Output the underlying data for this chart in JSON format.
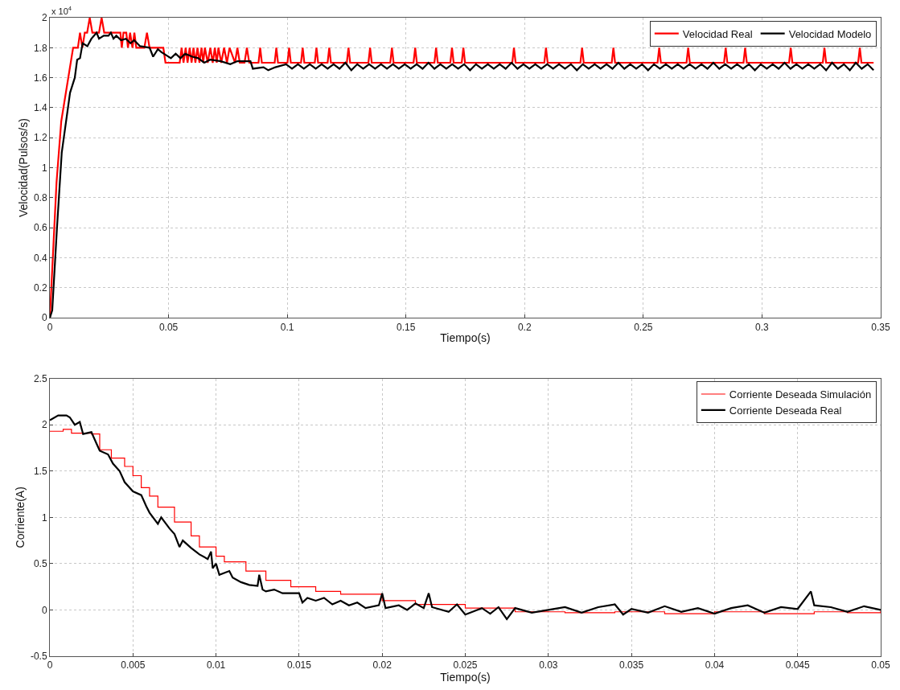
{
  "chart_data": [
    {
      "type": "line",
      "xlabel": "Tiempo(s)",
      "ylabel": "Velocidad(Pulsos/s)",
      "annotations": [
        "x 10$^{4}$"
      ],
      "xlim": [
        0,
        0.35
      ],
      "xticks": [
        0,
        0.05,
        0.1,
        0.15,
        0.2,
        0.25,
        0.3,
        0.35
      ],
      "ylim": [
        0,
        2
      ],
      "yticks": [
        0,
        0.2,
        0.4,
        0.6,
        0.8,
        1,
        1.2,
        1.4,
        1.6,
        1.8,
        2
      ],
      "grid": true,
      "legend": "top right",
      "marker": "none",
      "line_style": "solid",
      "series": [
        {
          "name": "Velocidad Real",
          "color": "#ff0000",
          "x": [
            0,
            0.0028,
            0.0048,
            0.0098,
            0.0118,
            0.0127,
            0.0137,
            0.0147,
            0.0157,
            0.0168,
            0.0179,
            0.0207,
            0.0218,
            0.0229,
            0.0297,
            0.0303,
            0.031,
            0.0322,
            0.0329,
            0.0338,
            0.0348,
            0.0356,
            0.0364,
            0.0398,
            0.0409,
            0.042,
            0.0478,
            0.0487,
            0.0547,
            0.0555,
            0.0563,
            0.0572,
            0.058,
            0.0589,
            0.0597,
            0.0605,
            0.0613,
            0.0622,
            0.063,
            0.0639,
            0.0646,
            0.0653,
            0.0665,
            0.0676,
            0.0686,
            0.0695,
            0.0703,
            0.071,
            0.0722,
            0.0734,
            0.0746,
            0.0757,
            0.078,
            0.079,
            0.08,
            0.082,
            0.083,
            0.084,
            0.0879,
            0.0886,
            0.0893,
            0.0947,
            0.0954,
            0.0961,
            0.1001,
            0.1008,
            0.1015,
            0.1058,
            0.1065,
            0.1072,
            0.1116,
            0.1123,
            0.113,
            0.117,
            0.1177,
            0.1184,
            0.1251,
            0.1258,
            0.1265,
            0.1342,
            0.1349,
            0.1356,
            0.1434,
            0.1441,
            0.1448,
            0.1532,
            0.1539,
            0.1546,
            0.162,
            0.1627,
            0.1634,
            0.1687,
            0.1694,
            0.1701,
            0.1735,
            0.1742,
            0.1749,
            0.1948,
            0.1955,
            0.1962,
            0.2083,
            0.209,
            0.2097,
            0.2235,
            0.2242,
            0.2249,
            0.2367,
            0.2374,
            0.2381,
            0.256,
            0.2567,
            0.2574,
            0.2682,
            0.2689,
            0.2696,
            0.284,
            0.2847,
            0.2854,
            0.2922,
            0.2929,
            0.2936,
            0.3114,
            0.3121,
            0.3128,
            0.3256,
            0.3263,
            0.327,
            0.3405,
            0.3412,
            0.3419,
            0.347
          ],
          "values": [
            0,
            0.9,
            1.31,
            1.8,
            1.8,
            1.9,
            1.8,
            1.9,
            1.9,
            2.0,
            1.9,
            1.9,
            2.0,
            1.9,
            1.9,
            1.8,
            1.9,
            1.9,
            1.8,
            1.9,
            1.8,
            1.9,
            1.8,
            1.8,
            1.9,
            1.8,
            1.8,
            1.7,
            1.7,
            1.8,
            1.7,
            1.8,
            1.7,
            1.8,
            1.7,
            1.8,
            1.7,
            1.8,
            1.7,
            1.8,
            1.7,
            1.8,
            1.7,
            1.8,
            1.7,
            1.8,
            1.7,
            1.8,
            1.7,
            1.8,
            1.7,
            1.8,
            1.7,
            1.8,
            1.7,
            1.7,
            1.8,
            1.7,
            1.7,
            1.8,
            1.7,
            1.7,
            1.8,
            1.7,
            1.7,
            1.8,
            1.7,
            1.7,
            1.8,
            1.7,
            1.7,
            1.8,
            1.7,
            1.7,
            1.8,
            1.7,
            1.7,
            1.8,
            1.7,
            1.7,
            1.8,
            1.7,
            1.7,
            1.8,
            1.7,
            1.7,
            1.8,
            1.7,
            1.7,
            1.8,
            1.7,
            1.7,
            1.8,
            1.7,
            1.7,
            1.8,
            1.7,
            1.7,
            1.8,
            1.7,
            1.7,
            1.8,
            1.7,
            1.7,
            1.8,
            1.7,
            1.7,
            1.8,
            1.7,
            1.7,
            1.8,
            1.7,
            1.7,
            1.8,
            1.7,
            1.7,
            1.8,
            1.7,
            1.7,
            1.8,
            1.7,
            1.7,
            1.8,
            1.7,
            1.7,
            1.8,
            1.7,
            1.7,
            1.8,
            1.7,
            1.7
          ]
        },
        {
          "name": "Velocidad Modelo",
          "color": "#000000",
          "x": [
            0,
            0.001,
            0.003,
            0.005,
            0.0085,
            0.0105,
            0.0115,
            0.0127,
            0.0138,
            0.0158,
            0.0175,
            0.0197,
            0.0207,
            0.0227,
            0.0247,
            0.0257,
            0.0268,
            0.028,
            0.03,
            0.032,
            0.034,
            0.0355,
            0.038,
            0.042,
            0.0435,
            0.0455,
            0.047,
            0.049,
            0.051,
            0.053,
            0.055,
            0.057,
            0.06,
            0.0625,
            0.065,
            0.0675,
            0.072,
            0.076,
            0.079,
            0.0845,
            0.0855,
            0.09,
            0.092,
            0.095,
            0.0995,
            0.102,
            0.1045,
            0.107,
            0.1095,
            0.112,
            0.1145,
            0.117,
            0.1195,
            0.122,
            0.1245,
            0.127,
            0.1295,
            0.132,
            0.1345,
            0.137,
            0.1395,
            0.142,
            0.1445,
            0.147,
            0.1495,
            0.152,
            0.1545,
            0.157,
            0.1595,
            0.162,
            0.1645,
            0.167,
            0.1695,
            0.172,
            0.1745,
            0.177,
            0.1795,
            0.182,
            0.1845,
            0.187,
            0.1895,
            0.192,
            0.1945,
            0.197,
            0.1995,
            0.202,
            0.2045,
            0.207,
            0.2095,
            0.212,
            0.2145,
            0.217,
            0.2195,
            0.222,
            0.2245,
            0.227,
            0.2295,
            0.232,
            0.2345,
            0.237,
            0.2395,
            0.242,
            0.2445,
            0.247,
            0.2495,
            0.252,
            0.2545,
            0.257,
            0.2595,
            0.262,
            0.2645,
            0.267,
            0.2695,
            0.272,
            0.2745,
            0.277,
            0.2795,
            0.282,
            0.2845,
            0.287,
            0.2895,
            0.292,
            0.2945,
            0.297,
            0.2995,
            0.302,
            0.3045,
            0.307,
            0.3095,
            0.312,
            0.3145,
            0.317,
            0.3195,
            0.322,
            0.3245,
            0.327,
            0.3295,
            0.332,
            0.3345,
            0.337,
            0.3395,
            0.342,
            0.3445,
            0.347
          ],
          "values": [
            0,
            0.05,
            0.6,
            1.1,
            1.5,
            1.6,
            1.72,
            1.73,
            1.83,
            1.81,
            1.86,
            1.9,
            1.86,
            1.88,
            1.88,
            1.9,
            1.86,
            1.88,
            1.85,
            1.86,
            1.83,
            1.85,
            1.81,
            1.8,
            1.74,
            1.79,
            1.77,
            1.75,
            1.73,
            1.76,
            1.73,
            1.76,
            1.74,
            1.73,
            1.7,
            1.72,
            1.71,
            1.69,
            1.71,
            1.71,
            1.66,
            1.67,
            1.65,
            1.67,
            1.69,
            1.66,
            1.69,
            1.66,
            1.69,
            1.66,
            1.69,
            1.66,
            1.69,
            1.66,
            1.7,
            1.65,
            1.69,
            1.66,
            1.69,
            1.66,
            1.69,
            1.66,
            1.69,
            1.66,
            1.69,
            1.66,
            1.69,
            1.66,
            1.7,
            1.66,
            1.69,
            1.66,
            1.69,
            1.66,
            1.69,
            1.65,
            1.69,
            1.66,
            1.69,
            1.66,
            1.69,
            1.66,
            1.7,
            1.66,
            1.69,
            1.66,
            1.69,
            1.66,
            1.69,
            1.66,
            1.69,
            1.66,
            1.69,
            1.65,
            1.69,
            1.66,
            1.69,
            1.66,
            1.69,
            1.66,
            1.7,
            1.66,
            1.69,
            1.66,
            1.69,
            1.65,
            1.69,
            1.66,
            1.69,
            1.66,
            1.69,
            1.66,
            1.69,
            1.66,
            1.69,
            1.66,
            1.7,
            1.66,
            1.69,
            1.66,
            1.69,
            1.66,
            1.69,
            1.65,
            1.69,
            1.66,
            1.69,
            1.66,
            1.7,
            1.66,
            1.69,
            1.66,
            1.69,
            1.66,
            1.69,
            1.65,
            1.7,
            1.66,
            1.69,
            1.65,
            1.7,
            1.66,
            1.69,
            1.65
          ]
        }
      ]
    },
    {
      "type": "line",
      "xlabel": "Tiempo(s)",
      "ylabel": "Corriente(A)",
      "xlim": [
        0,
        0.05
      ],
      "xticks": [
        0,
        0.005,
        0.01,
        0.015,
        0.02,
        0.025,
        0.03,
        0.035,
        0.04,
        0.045,
        0.05
      ],
      "ylim": [
        -0.5,
        2.5
      ],
      "yticks": [
        -0.5,
        0,
        0.5,
        1,
        1.5,
        2,
        2.5
      ],
      "grid": true,
      "legend": "top right",
      "marker": "none",
      "line_style": "solid",
      "series": [
        {
          "name": "Corriente Deseada Simulación",
          "type": "step",
          "color": "#ff0000",
          "x": [
            0,
            0.0008,
            0.0013,
            0.0025,
            0.003,
            0.0037,
            0.0045,
            0.005,
            0.0055,
            0.006,
            0.0065,
            0.0075,
            0.0085,
            0.009,
            0.01,
            0.0105,
            0.0118,
            0.013,
            0.0145,
            0.016,
            0.0175,
            0.02,
            0.022,
            0.025,
            0.028,
            0.031,
            0.034,
            0.037,
            0.04,
            0.043,
            0.046,
            0.048,
            0.05
          ],
          "values": [
            1.93,
            1.95,
            1.91,
            1.9,
            1.73,
            1.64,
            1.55,
            1.45,
            1.32,
            1.23,
            1.11,
            0.95,
            0.8,
            0.68,
            0.58,
            0.52,
            0.42,
            0.32,
            0.25,
            0.2,
            0.17,
            0.1,
            0.06,
            0.02,
            -0.02,
            -0.03,
            -0.02,
            -0.04,
            -0.02,
            -0.04,
            -0.02,
            -0.03,
            -0.01
          ]
        },
        {
          "name": "Corriente Deseada Real",
          "color": "#000000",
          "x": [
            0,
            0.0005,
            0.001,
            0.0012,
            0.0015,
            0.0018,
            0.002,
            0.0025,
            0.0028,
            0.003,
            0.0035,
            0.0038,
            0.0042,
            0.0045,
            0.005,
            0.0055,
            0.0058,
            0.006,
            0.0065,
            0.0067,
            0.0072,
            0.0075,
            0.0078,
            0.008,
            0.0085,
            0.009,
            0.0095,
            0.0097,
            0.0098,
            0.01,
            0.0102,
            0.0108,
            0.011,
            0.0115,
            0.012,
            0.0125,
            0.0126,
            0.0128,
            0.013,
            0.0135,
            0.014,
            0.015,
            0.0152,
            0.0155,
            0.016,
            0.0165,
            0.017,
            0.0175,
            0.018,
            0.0185,
            0.019,
            0.0198,
            0.02,
            0.0202,
            0.021,
            0.0215,
            0.022,
            0.0225,
            0.0228,
            0.023,
            0.024,
            0.0245,
            0.025,
            0.026,
            0.0265,
            0.027,
            0.0275,
            0.028,
            0.029,
            0.03,
            0.031,
            0.032,
            0.033,
            0.034,
            0.0345,
            0.035,
            0.036,
            0.037,
            0.038,
            0.039,
            0.04,
            0.041,
            0.042,
            0.043,
            0.044,
            0.045,
            0.0458,
            0.046,
            0.047,
            0.048,
            0.049,
            0.05
          ],
          "values": [
            2.05,
            2.1,
            2.1,
            2.08,
            2.0,
            2.03,
            1.9,
            1.92,
            1.8,
            1.72,
            1.68,
            1.58,
            1.5,
            1.38,
            1.28,
            1.24,
            1.12,
            1.05,
            0.93,
            1.0,
            0.88,
            0.82,
            0.68,
            0.75,
            0.67,
            0.6,
            0.55,
            0.63,
            0.45,
            0.5,
            0.38,
            0.42,
            0.35,
            0.3,
            0.27,
            0.26,
            0.38,
            0.22,
            0.2,
            0.22,
            0.18,
            0.18,
            0.08,
            0.13,
            0.1,
            0.13,
            0.06,
            0.1,
            0.05,
            0.08,
            0.02,
            0.05,
            0.18,
            0.02,
            0.05,
            0.0,
            0.07,
            0.02,
            0.18,
            0.03,
            -0.02,
            0.06,
            -0.05,
            0.02,
            -0.04,
            0.03,
            -0.1,
            0.02,
            -0.03,
            0.0,
            0.03,
            -0.03,
            0.03,
            0.06,
            -0.05,
            0.01,
            -0.03,
            0.04,
            -0.02,
            0.02,
            -0.04,
            0.02,
            0.05,
            -0.03,
            0.03,
            0.01,
            0.2,
            0.05,
            0.03,
            -0.02,
            0.04,
            0.0
          ]
        }
      ]
    }
  ]
}
